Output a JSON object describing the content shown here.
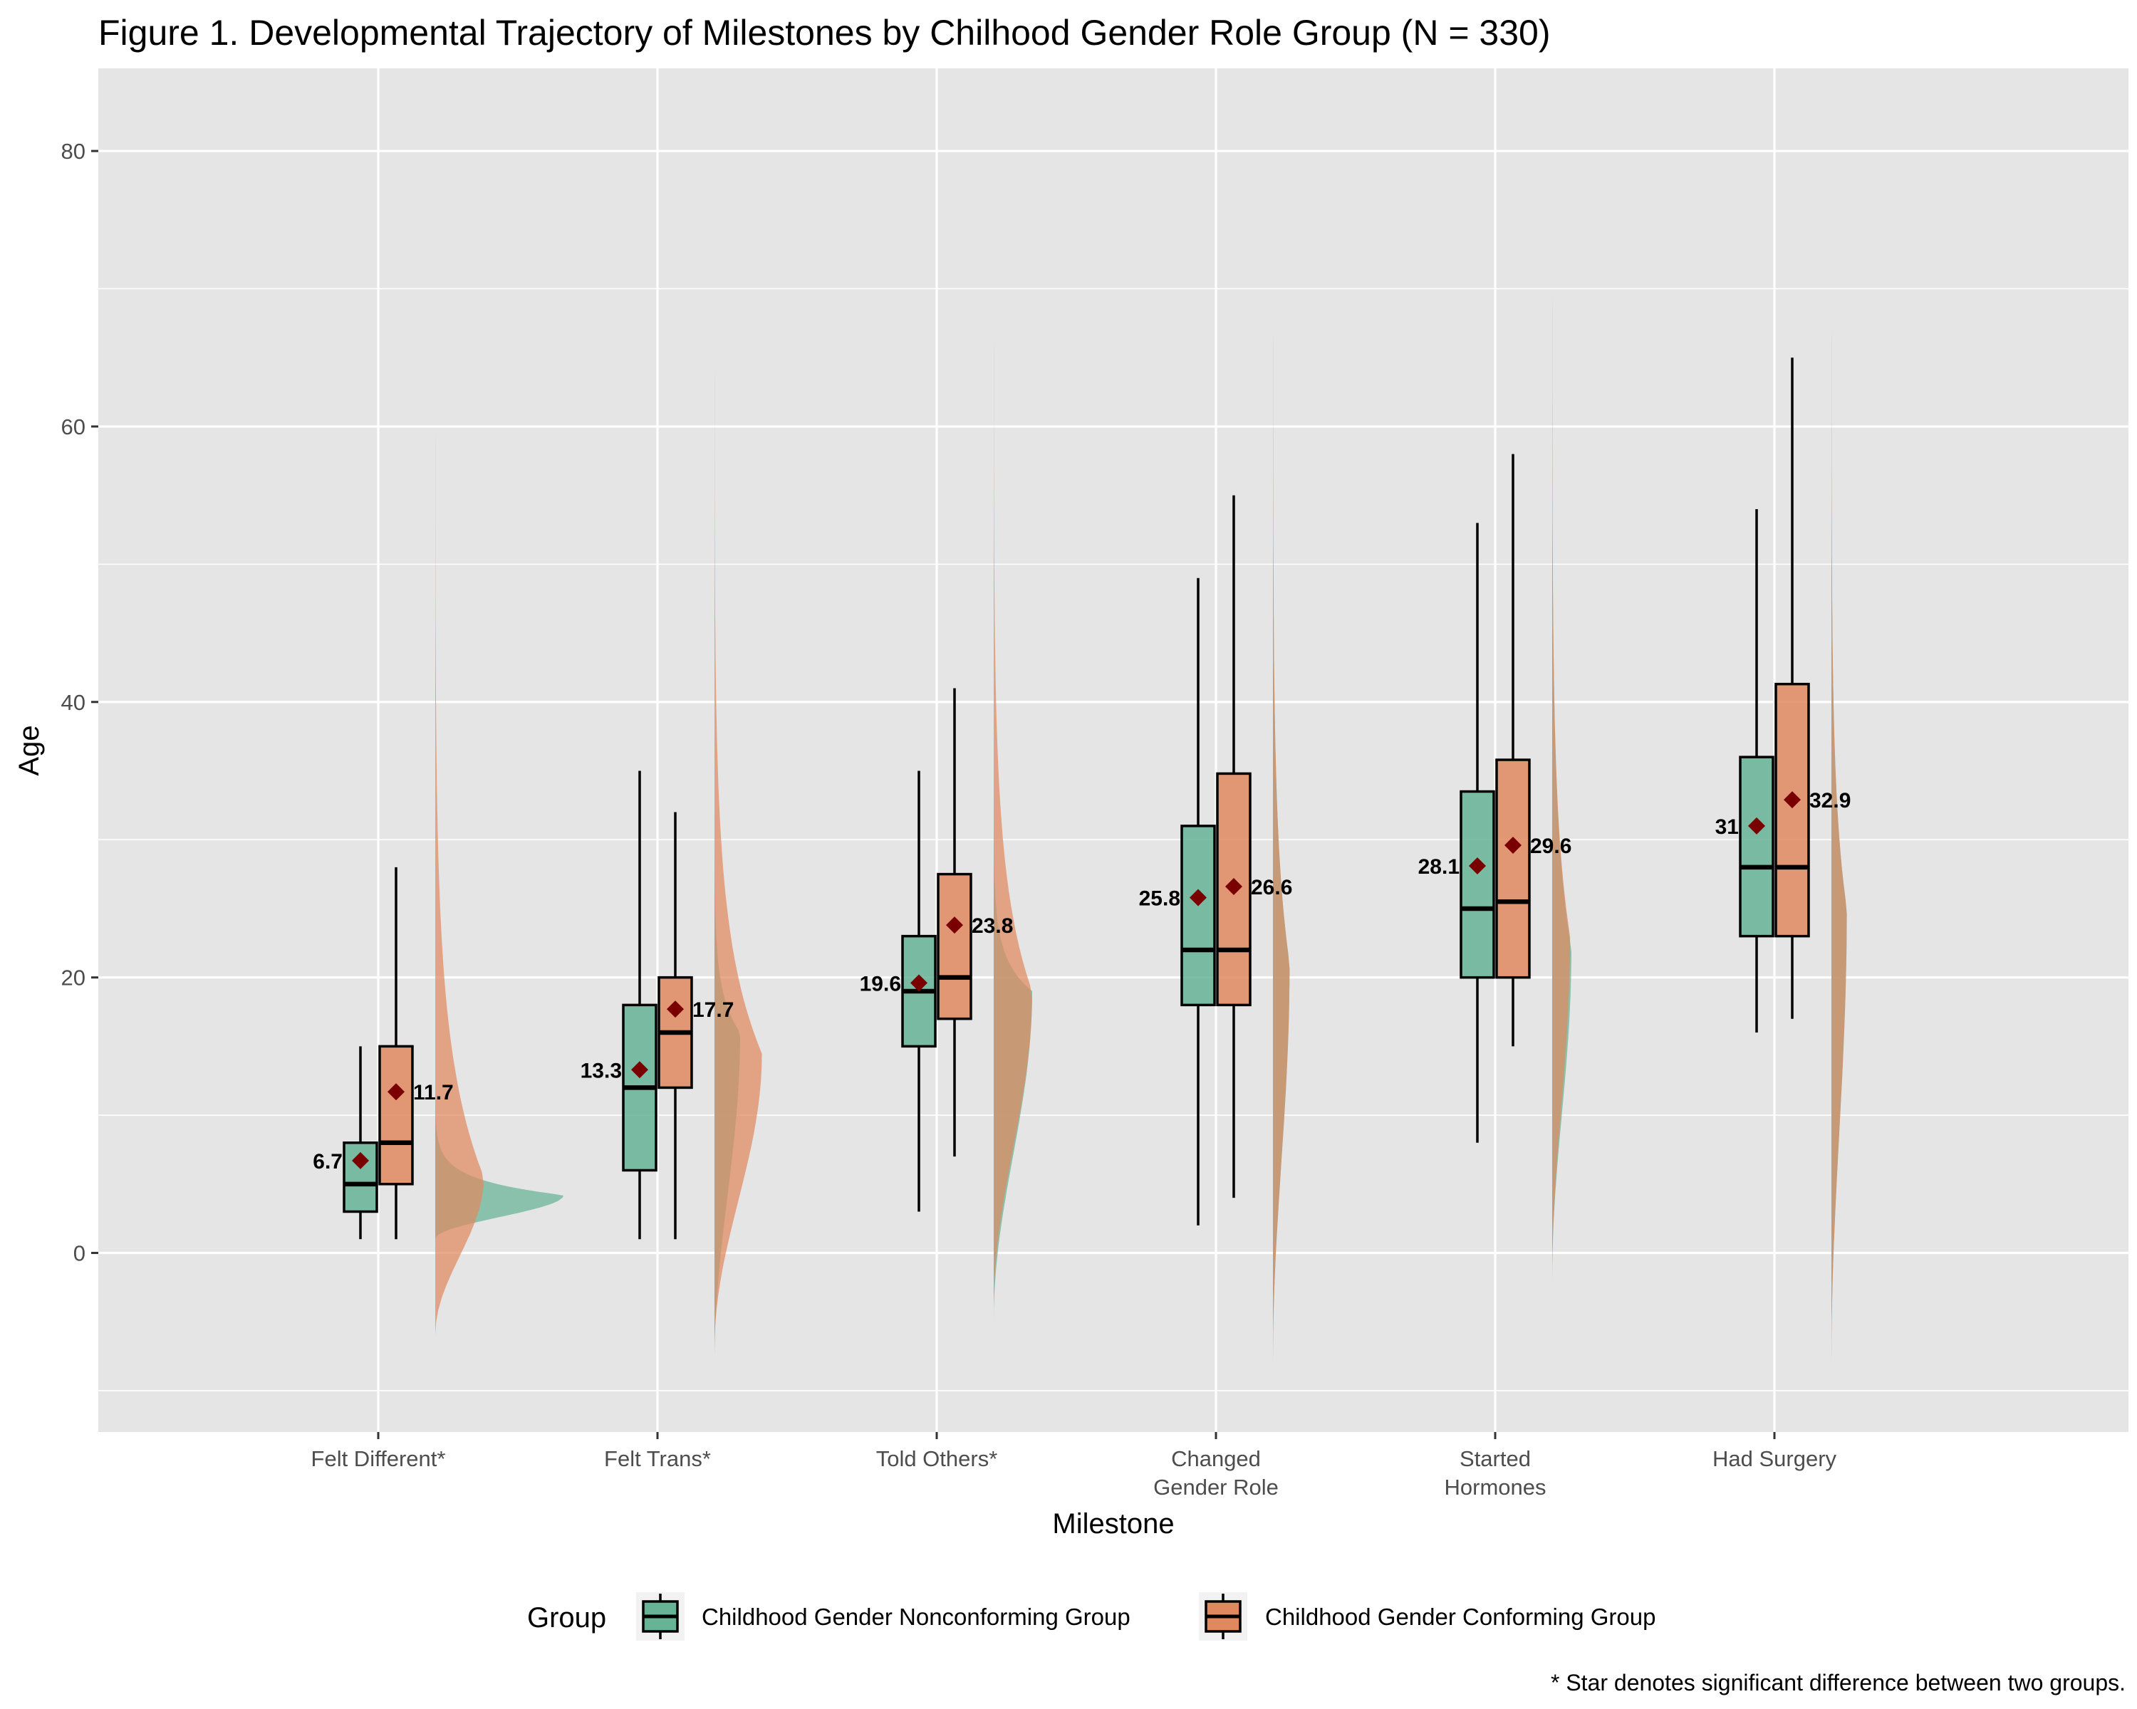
{
  "chart_data": {
    "type": "boxplot",
    "title": "Figure 1. Developmental Trajectory of Milestones by Chilhood Gender Role Group (N = 330)",
    "xlabel": "Milestone",
    "ylabel": "Age",
    "ylim": [
      -13,
      86
    ],
    "yticks": [
      0,
      20,
      40,
      60,
      80
    ],
    "grid": true,
    "legend_position": "bottom",
    "legend_title": "Group",
    "note": "* Star denotes significant difference between two groups.",
    "categories": [
      {
        "label_lines": [
          "Felt Different*"
        ]
      },
      {
        "label_lines": [
          "Felt Trans*"
        ]
      },
      {
        "label_lines": [
          "Told Others*"
        ]
      },
      {
        "label_lines": [
          "Changed",
          "Gender Role"
        ]
      },
      {
        "label_lines": [
          "Started",
          "Hormones"
        ]
      },
      {
        "label_lines": [
          "Had Surgery"
        ]
      }
    ],
    "series": [
      {
        "name": "Childhood Gender Nonconforming Group",
        "color": "#66b396",
        "stats": [
          {
            "whisker_low": 1,
            "q1": 3,
            "median": 5,
            "q3": 8,
            "whisker_high": 15,
            "mean": 6.7,
            "density_range": [
              1,
              12
            ],
            "density_peak_age": 4.2,
            "density_peak_width": 1.0
          },
          {
            "whisker_low": 1,
            "q1": 6,
            "median": 12,
            "q3": 18,
            "whisker_high": 35,
            "mean": 13.3,
            "density_range": [
              -8,
              35
            ],
            "density_peak_age": 16,
            "density_peak_width": 0.2
          },
          {
            "whisker_low": 3,
            "q1": 15,
            "median": 19,
            "q3": 23,
            "whisker_high": 35,
            "mean": 19.6,
            "density_range": [
              -5,
              35
            ],
            "density_peak_age": 19,
            "density_peak_width": 0.3
          },
          {
            "whisker_low": 2,
            "q1": 18,
            "median": 22,
            "q3": 31,
            "whisker_high": 49,
            "mean": 25.8,
            "density_range": [
              -8,
              80
            ],
            "density_peak_age": 21,
            "density_peak_width": 0.13
          },
          {
            "whisker_low": 8,
            "q1": 20,
            "median": 25,
            "q3": 33.5,
            "whisker_high": 53,
            "mean": 28.1,
            "density_range": [
              -2,
              81
            ],
            "density_peak_age": 22,
            "density_peak_width": 0.15
          },
          {
            "whisker_low": 16,
            "q1": 23,
            "median": 28,
            "q3": 36,
            "whisker_high": 54,
            "mean": 31,
            "density_range": [
              -8,
              79
            ],
            "density_peak_age": 25,
            "density_peak_width": 0.12
          }
        ]
      },
      {
        "name": "Childhood Gender Conforming Group",
        "color": "#e0895f",
        "stats": [
          {
            "whisker_low": 1,
            "q1": 5,
            "median": 8,
            "q3": 15,
            "whisker_high": 28,
            "mean": 11.7,
            "density_range": [
              -6,
              67
            ],
            "density_peak_age": 5.5,
            "density_peak_width": 0.38
          },
          {
            "whisker_low": 1,
            "q1": 12,
            "median": 16,
            "q3": 20,
            "whisker_high": 32,
            "mean": 17.7,
            "density_range": [
              -7,
              71
            ],
            "density_peak_age": 14.5,
            "density_peak_width": 0.37
          },
          {
            "whisker_low": 7,
            "q1": 17,
            "median": 20,
            "q3": 27.5,
            "whisker_high": 41,
            "mean": 23.8,
            "density_range": [
              -4,
              74
            ],
            "density_peak_age": 19,
            "density_peak_width": 0.3
          },
          {
            "whisker_low": 4,
            "q1": 18,
            "median": 22,
            "q3": 34.8,
            "whisker_high": 55,
            "mean": 26.6,
            "density_range": [
              -8,
              80
            ],
            "density_peak_age": 21,
            "density_peak_width": 0.13
          },
          {
            "whisker_low": 15,
            "q1": 20,
            "median": 25.5,
            "q3": 35.8,
            "whisker_high": 58,
            "mean": 29.6,
            "density_range": [
              -2,
              81
            ],
            "density_peak_age": 23,
            "density_peak_width": 0.14
          },
          {
            "whisker_low": 17,
            "q1": 23,
            "median": 28,
            "q3": 41.3,
            "whisker_high": 65,
            "mean": 32.9,
            "density_range": [
              -8,
              79
            ],
            "density_peak_age": 25,
            "density_peak_width": 0.12
          }
        ]
      }
    ],
    "mean_marker_color": "#7a0000",
    "panel_color": "#e5e5e5"
  }
}
